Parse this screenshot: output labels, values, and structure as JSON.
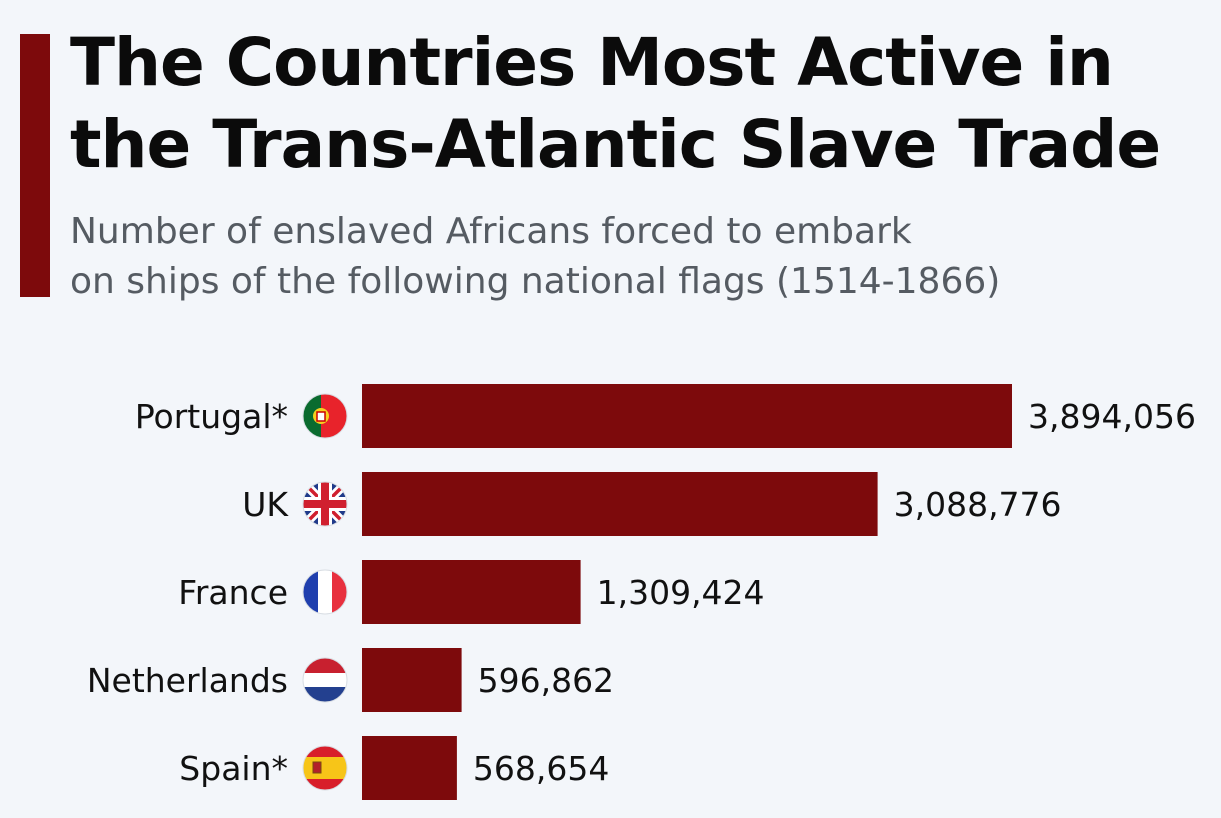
{
  "header": {
    "title_line1": "The Countries Most Active in",
    "title_line2": "the Trans-Atlantic Slave Trade",
    "subtitle_line1": "Number of enslaved Africans forced to embark",
    "subtitle_line2": "on ships of the following national flags (1514-1866)"
  },
  "colors": {
    "accent": "#7d0a0c",
    "bar": "#7d0a0c",
    "background": "#f3f6fa"
  },
  "chart_data": {
    "type": "bar",
    "orientation": "horizontal",
    "title": "The Countries Most Active in the Trans-Atlantic Slave Trade",
    "subtitle": "Number of enslaved Africans forced to embark on ships of the following national flags (1514-1866)",
    "categories": [
      "Portugal*",
      "UK",
      "France",
      "Netherlands",
      "Spain*"
    ],
    "values": [
      3894056,
      3088776,
      1309424,
      596862,
      568654
    ],
    "value_labels": [
      "3,894,056",
      "3,088,776",
      "1,309,424",
      "596,862",
      "568,654"
    ],
    "flags": [
      "portugal-flag-icon",
      "uk-flag-icon",
      "france-flag-icon",
      "netherlands-flag-icon",
      "spain-flag-icon"
    ],
    "grid": false,
    "legend": "none"
  }
}
